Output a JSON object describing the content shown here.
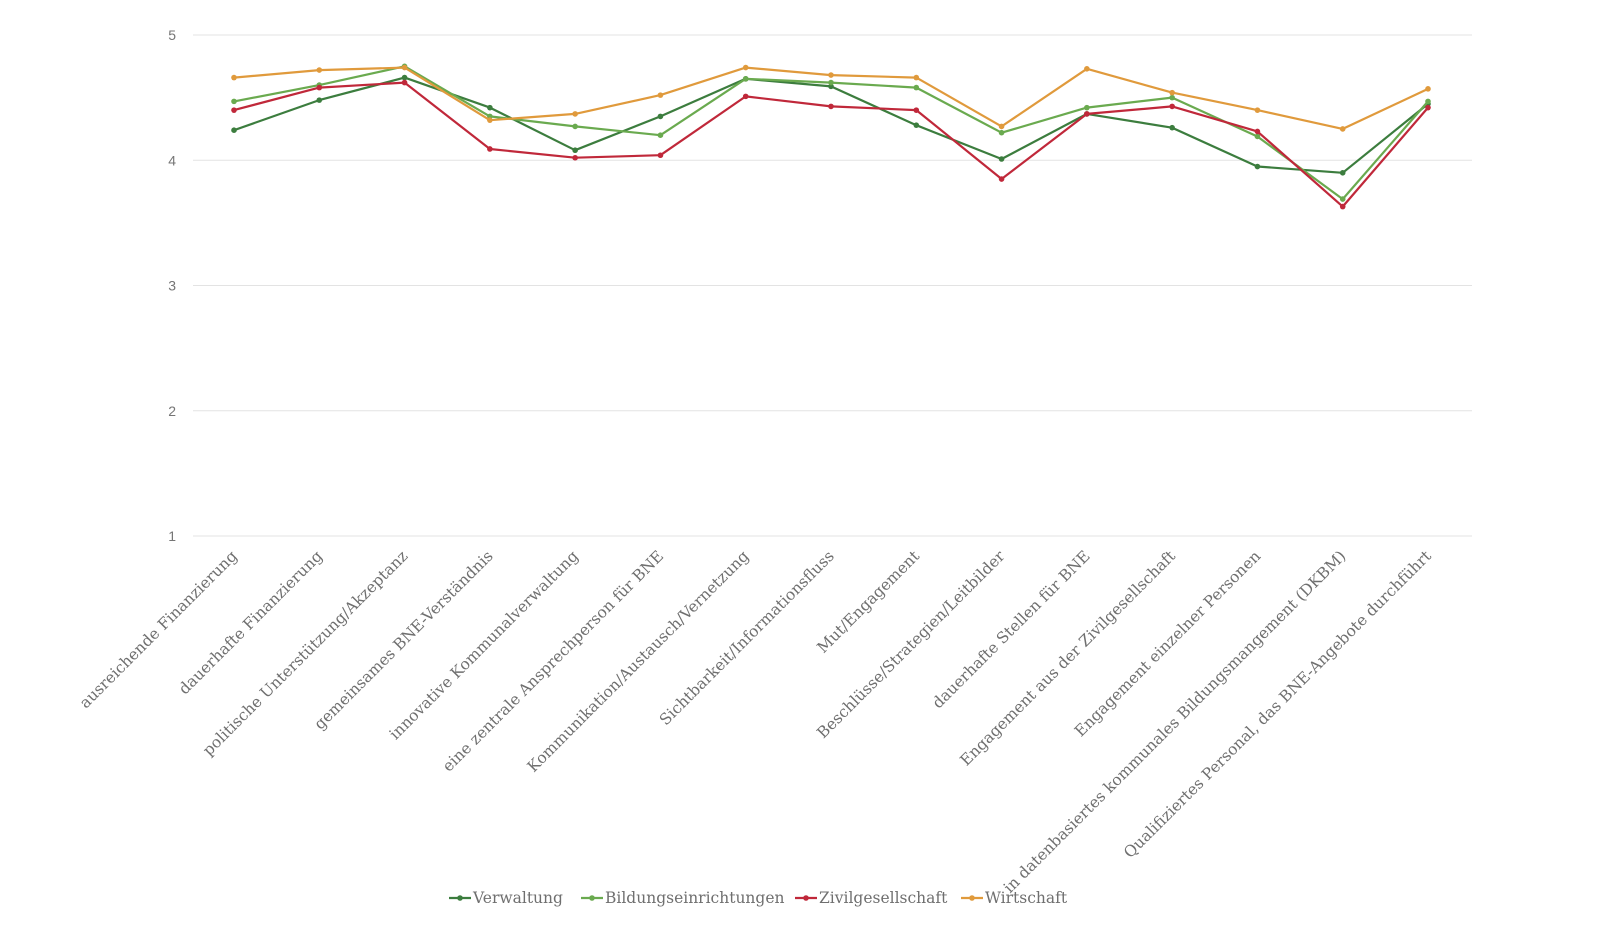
{
  "chart_data": {
    "type": "line",
    "categories": [
      "ausreichende Finanzierung",
      "dauerhafte Finanzierung",
      "politische Unterstützung/Akzeptanz",
      "gemeinsames BNE-Verständnis",
      "innovative Kommunalverwaltung",
      "eine zentrale Ansprechperson für BNE",
      "Kommunikation/Austausch/Vernetzung",
      "Sichtbarkeit/Informationsfluss",
      "Mut/Engagement",
      "Beschlüsse/Strategien/Leitbilder",
      "dauerhafte Stellen für BNE",
      "Engagement aus der Zivilgesellschaft",
      "Engagement einzelner Personen",
      "in datenbasiertes kommunales Bildungsmangement (DKBM)",
      "Qualifiziertes Personal, das BNE-Angebote durchführt"
    ],
    "series": [
      {
        "name": "Verwaltung",
        "color": "#3c7d3e",
        "values": [
          4.24,
          4.48,
          4.66,
          4.42,
          4.08,
          4.35,
          4.65,
          4.59,
          4.28,
          4.01,
          4.37,
          4.26,
          3.95,
          3.9,
          4.45
        ]
      },
      {
        "name": "Bildungseinrichtungen",
        "color": "#6aaa4f",
        "values": [
          4.47,
          4.6,
          4.75,
          4.35,
          4.27,
          4.2,
          4.65,
          4.62,
          4.58,
          4.22,
          4.42,
          4.5,
          4.19,
          3.69,
          4.47
        ]
      },
      {
        "name": "Zivilgesellschaft",
        "color": "#c0283a",
        "values": [
          4.4,
          4.58,
          4.62,
          4.09,
          4.02,
          4.04,
          4.51,
          4.43,
          4.4,
          3.85,
          4.37,
          4.43,
          4.23,
          3.63,
          4.42
        ]
      },
      {
        "name": "Wirtschaft",
        "color": "#e09a3c",
        "values": [
          4.66,
          4.72,
          4.74,
          4.32,
          4.37,
          4.52,
          4.74,
          4.68,
          4.66,
          4.27,
          4.73,
          4.54,
          4.4,
          4.25,
          4.57
        ]
      }
    ],
    "yticks": [
      "1",
      "2",
      "3",
      "4",
      "5"
    ],
    "ylim": [
      1,
      5
    ],
    "grid": true,
    "legend": "bottom-center"
  }
}
